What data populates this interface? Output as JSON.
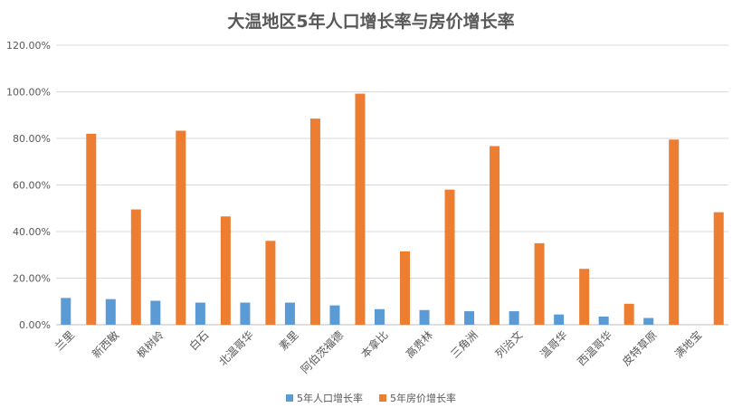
{
  "chart_data": {
    "type": "bar",
    "title": "大温地区5年人口增长率与房价增长率",
    "xlabel": "",
    "ylabel": "",
    "ylim": [
      0,
      120
    ],
    "yticks": [
      "0.00%",
      "20.00%",
      "40.00%",
      "60.00%",
      "80.00%",
      "100.00%",
      "120.00%"
    ],
    "grid": true,
    "legend_position": "bottom",
    "categories": [
      "兰里",
      "新西敏",
      "枫树岭",
      "白石",
      "北温哥华",
      "素里",
      "阿伯茨福德",
      "本拿比",
      "高贵林",
      "三角洲",
      "列治文",
      "温哥华",
      "西温哥华",
      "皮特草原",
      "满地宝"
    ],
    "series": [
      {
        "name": "5年人口增长率",
        "color": "#5b9bd5",
        "values": [
          11.5,
          11.0,
          10.3,
          9.5,
          9.5,
          9.5,
          8.3,
          6.7,
          6.3,
          5.8,
          5.8,
          4.4,
          3.5,
          2.9,
          0.0
        ]
      },
      {
        "name": "5年房价增长率",
        "color": "#ed7d31",
        "values": [
          82.0,
          49.5,
          83.3,
          46.5,
          36.0,
          88.5,
          99.2,
          31.5,
          58.0,
          76.7,
          35.0,
          24.0,
          9.0,
          79.5,
          48.3
        ]
      }
    ]
  }
}
